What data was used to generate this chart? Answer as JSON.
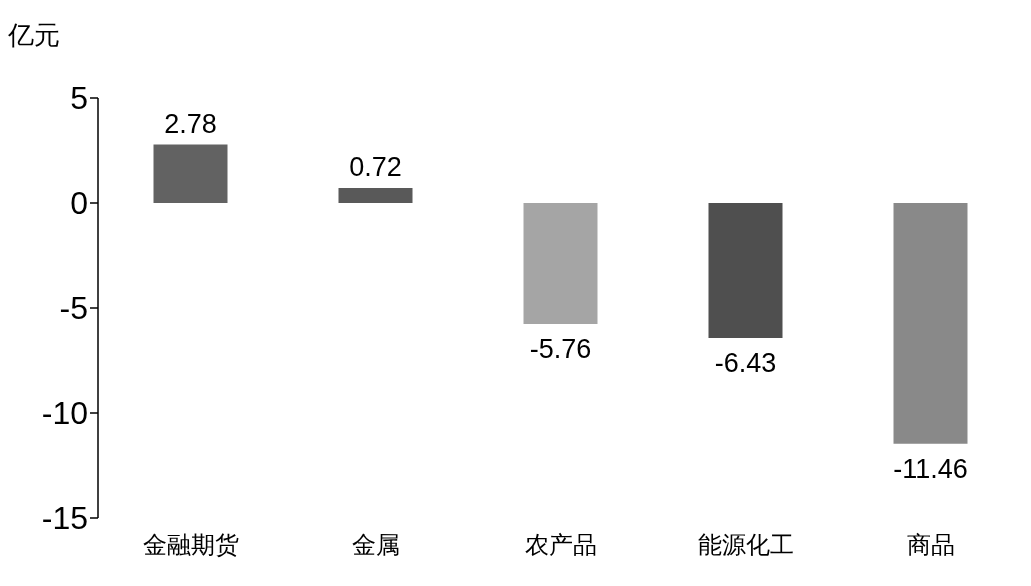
{
  "chart_data": {
    "type": "bar",
    "ylabel": "亿元",
    "categories": [
      "金融期货",
      "金属",
      "农产品",
      "能源化工",
      "商品"
    ],
    "values": [
      2.78,
      0.72,
      -5.76,
      -6.43,
      -11.46
    ],
    "colors": [
      "#626262",
      "#595959",
      "#a5a5a5",
      "#4f4f4f",
      "#898989"
    ],
    "ylim": [
      -15,
      5
    ],
    "yticks": [
      -15,
      -10,
      -5,
      0,
      5
    ],
    "data_labels": true,
    "grid": false,
    "legend": false
  }
}
